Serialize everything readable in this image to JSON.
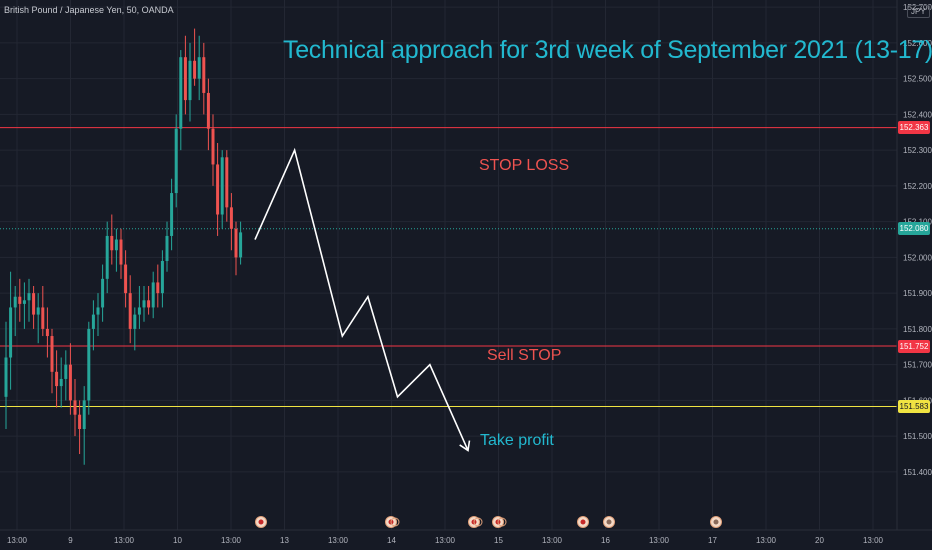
{
  "header": {
    "symbol": "British Pound / Japanese Yen, 50, OANDA",
    "currency_badge": "JPY"
  },
  "annotations": {
    "title": "Technical approach for 3rd week of September 2021 (13-17)",
    "stop_loss": "STOP LOSS",
    "sell_stop": "Sell STOP",
    "take_profit": "Take profit"
  },
  "price_tags": {
    "stop_loss": "152.363",
    "last_price": "152.080",
    "sell_stop": "151.752",
    "take_profit": "151.583"
  },
  "colors": {
    "background": "#161a25",
    "up_candle": "#26a69a",
    "down_candle": "#ef5350",
    "stop_line": "#f23645",
    "take_line": "#f0e442",
    "last_line": "#26a69a",
    "title": "#22b8cf",
    "projection": "#ffffff"
  },
  "chart_data": {
    "type": "candlestick",
    "ylim": [
      151.36,
      152.72
    ],
    "y_ticks": [
      151.4,
      151.5,
      151.6,
      151.7,
      151.8,
      151.9,
      152.0,
      152.1,
      152.2,
      152.3,
      152.4,
      152.5,
      152.6,
      152.7
    ],
    "y_tick_labels": [
      "151.400",
      "151.500",
      "151.600",
      "151.700",
      "151.800",
      "151.900",
      "152.000",
      "152.100",
      "152.200",
      "152.300",
      "152.400",
      "152.500",
      "152.600",
      "152.700"
    ],
    "x_tick_labels": [
      "13:00",
      "9",
      "13:00",
      "10",
      "13:00",
      "13",
      "13:00",
      "14",
      "13:00",
      "15",
      "13:00",
      "16",
      "13:00",
      "17",
      "13:00",
      "20",
      "13:00"
    ],
    "levels": [
      {
        "name": "STOP LOSS",
        "price": 152.363
      },
      {
        "name": "last",
        "price": 152.08
      },
      {
        "name": "Sell STOP",
        "price": 151.752
      },
      {
        "name": "Take profit",
        "price": 151.583
      }
    ],
    "candles": [
      {
        "o": 151.61,
        "h": 151.82,
        "l": 151.52,
        "c": 151.72
      },
      {
        "o": 151.72,
        "h": 151.96,
        "l": 151.63,
        "c": 151.86
      },
      {
        "o": 151.86,
        "h": 151.92,
        "l": 151.78,
        "c": 151.89
      },
      {
        "o": 151.89,
        "h": 151.94,
        "l": 151.82,
        "c": 151.87
      },
      {
        "o": 151.87,
        "h": 151.93,
        "l": 151.8,
        "c": 151.88
      },
      {
        "o": 151.88,
        "h": 151.94,
        "l": 151.82,
        "c": 151.9
      },
      {
        "o": 151.9,
        "h": 151.92,
        "l": 151.8,
        "c": 151.84
      },
      {
        "o": 151.84,
        "h": 151.9,
        "l": 151.76,
        "c": 151.86
      },
      {
        "o": 151.86,
        "h": 151.92,
        "l": 151.78,
        "c": 151.8
      },
      {
        "o": 151.8,
        "h": 151.86,
        "l": 151.72,
        "c": 151.78
      },
      {
        "o": 151.78,
        "h": 151.8,
        "l": 151.62,
        "c": 151.68
      },
      {
        "o": 151.68,
        "h": 151.74,
        "l": 151.58,
        "c": 151.64
      },
      {
        "o": 151.64,
        "h": 151.72,
        "l": 151.58,
        "c": 151.66
      },
      {
        "o": 151.66,
        "h": 151.74,
        "l": 151.6,
        "c": 151.7
      },
      {
        "o": 151.7,
        "h": 151.76,
        "l": 151.56,
        "c": 151.6
      },
      {
        "o": 151.6,
        "h": 151.66,
        "l": 151.5,
        "c": 151.56
      },
      {
        "o": 151.56,
        "h": 151.6,
        "l": 151.45,
        "c": 151.52
      },
      {
        "o": 151.52,
        "h": 151.64,
        "l": 151.42,
        "c": 151.6
      },
      {
        "o": 151.6,
        "h": 151.82,
        "l": 151.56,
        "c": 151.8
      },
      {
        "o": 151.8,
        "h": 151.88,
        "l": 151.74,
        "c": 151.84
      },
      {
        "o": 151.84,
        "h": 151.9,
        "l": 151.78,
        "c": 151.86
      },
      {
        "o": 151.86,
        "h": 151.98,
        "l": 151.82,
        "c": 151.94
      },
      {
        "o": 151.94,
        "h": 152.1,
        "l": 151.9,
        "c": 152.06
      },
      {
        "o": 152.06,
        "h": 152.12,
        "l": 151.98,
        "c": 152.02
      },
      {
        "o": 152.02,
        "h": 152.08,
        "l": 151.96,
        "c": 152.05
      },
      {
        "o": 152.05,
        "h": 152.08,
        "l": 151.94,
        "c": 151.98
      },
      {
        "o": 151.98,
        "h": 152.02,
        "l": 151.86,
        "c": 151.9
      },
      {
        "o": 151.9,
        "h": 151.95,
        "l": 151.76,
        "c": 151.8
      },
      {
        "o": 151.8,
        "h": 151.86,
        "l": 151.74,
        "c": 151.84
      },
      {
        "o": 151.84,
        "h": 151.92,
        "l": 151.8,
        "c": 151.86
      },
      {
        "o": 151.86,
        "h": 151.92,
        "l": 151.82,
        "c": 151.88
      },
      {
        "o": 151.88,
        "h": 151.92,
        "l": 151.84,
        "c": 151.86
      },
      {
        "o": 151.86,
        "h": 151.96,
        "l": 151.83,
        "c": 151.93
      },
      {
        "o": 151.93,
        "h": 151.98,
        "l": 151.86,
        "c": 151.9
      },
      {
        "o": 151.9,
        "h": 152.02,
        "l": 151.86,
        "c": 151.99
      },
      {
        "o": 151.99,
        "h": 152.1,
        "l": 151.96,
        "c": 152.06
      },
      {
        "o": 152.06,
        "h": 152.22,
        "l": 152.02,
        "c": 152.18
      },
      {
        "o": 152.18,
        "h": 152.4,
        "l": 152.14,
        "c": 152.36
      },
      {
        "o": 152.36,
        "h": 152.58,
        "l": 152.3,
        "c": 152.56
      },
      {
        "o": 152.56,
        "h": 152.62,
        "l": 152.4,
        "c": 152.44
      },
      {
        "o": 152.44,
        "h": 152.6,
        "l": 152.38,
        "c": 152.55
      },
      {
        "o": 152.55,
        "h": 152.64,
        "l": 152.48,
        "c": 152.5
      },
      {
        "o": 152.5,
        "h": 152.62,
        "l": 152.44,
        "c": 152.56
      },
      {
        "o": 152.56,
        "h": 152.6,
        "l": 152.4,
        "c": 152.46
      },
      {
        "o": 152.46,
        "h": 152.5,
        "l": 152.3,
        "c": 152.36
      },
      {
        "o": 152.36,
        "h": 152.4,
        "l": 152.2,
        "c": 152.26
      },
      {
        "o": 152.26,
        "h": 152.32,
        "l": 152.06,
        "c": 152.12
      },
      {
        "o": 152.12,
        "h": 152.3,
        "l": 152.08,
        "c": 152.28
      },
      {
        "o": 152.28,
        "h": 152.3,
        "l": 152.1,
        "c": 152.14
      },
      {
        "o": 152.14,
        "h": 152.18,
        "l": 152.02,
        "c": 152.08
      },
      {
        "o": 152.08,
        "h": 152.1,
        "l": 151.95,
        "c": 152.0
      },
      {
        "o": 152.0,
        "h": 152.1,
        "l": 151.98,
        "c": 152.07
      }
    ],
    "projection": [
      {
        "x_frac": 0.0,
        "price": 152.05
      },
      {
        "x_frac": 0.186,
        "price": 152.3
      },
      {
        "x_frac": 0.41,
        "price": 151.78
      },
      {
        "x_frac": 0.53,
        "price": 151.89
      },
      {
        "x_frac": 0.669,
        "price": 151.61
      },
      {
        "x_frac": 0.821,
        "price": 151.7
      },
      {
        "x_frac": 1.0,
        "price": 151.46
      }
    ]
  }
}
